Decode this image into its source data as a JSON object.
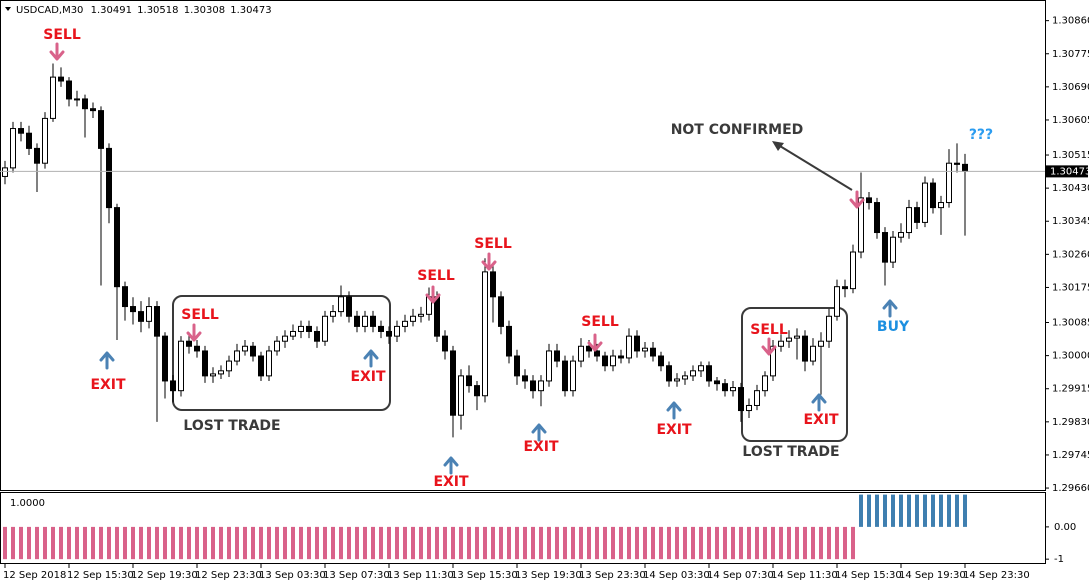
{
  "chart_data": {
    "type": "candlestick",
    "symbol": "USDCAD,M30",
    "ylim": [
      1.29655,
      1.30913
    ],
    "yticks": [
      {
        "value": 1.3086,
        "label": "1.30860"
      },
      1.30775,
      {
        "value": 1.3069,
        "label": "1.30690"
      },
      1.30605,
      1.30515,
      {
        "value": 1.3043,
        "label": "1.30430"
      },
      1.30345,
      {
        "value": 1.3026,
        "label": "1.30260"
      },
      1.30175,
      1.30085,
      {
        "value": 1.3,
        "label": "1.30000"
      },
      1.29915,
      {
        "value": 1.2983,
        "label": "1.29830"
      },
      1.29745,
      {
        "value": 1.2966,
        "label": "1.29660"
      }
    ],
    "xticks": [
      {
        "value": 0,
        "label": "12 Sep 2018"
      },
      {
        "value": 8,
        "label": "12 Sep 15:30"
      },
      {
        "value": 16,
        "label": "12 Sep 19:30"
      },
      {
        "value": 24,
        "label": "12 Sep 23:30"
      },
      {
        "value": 32,
        "label": "13 Sep 03:30"
      },
      {
        "value": 40,
        "label": "13 Sep 07:30"
      },
      {
        "value": 48,
        "label": "13 Sep 11:30"
      },
      {
        "value": 56,
        "label": "13 Sep 15:30"
      },
      {
        "value": 64,
        "label": "13 Sep 19:30"
      },
      {
        "value": 72,
        "label": "13 Sep 23:30"
      },
      {
        "value": 80,
        "label": "14 Sep 03:30"
      },
      {
        "value": 88,
        "label": "14 Sep 07:30"
      },
      {
        "value": 96,
        "label": "14 Sep 11:30"
      },
      {
        "value": 104,
        "label": "14 Sep 15:30"
      },
      {
        "value": 112,
        "label": "14 Sep 19:30"
      },
      {
        "value": 120,
        "label": "14 Sep 23:30"
      }
    ],
    "up_color": "#ffffff",
    "down_color": "#000000",
    "open": [
      1.3046,
      1.30482,
      1.30583,
      1.30571,
      1.30532,
      1.30494,
      1.30609,
      1.30715,
      1.30705,
      1.30659,
      1.30659,
      1.30634,
      1.30629,
      1.30532,
      1.3038,
      1.30177,
      1.30126,
      1.30113,
      1.30088,
      1.30126,
      1.3005,
      1.29935,
      1.2991,
      1.30037,
      1.30024,
      1.30012,
      1.29948,
      1.29953,
      1.29961,
      1.29986,
      1.30012,
      1.30024,
      1.29999,
      1.29948,
      1.30012,
      1.30037,
      1.3005,
      1.30062,
      1.30075,
      1.30062,
      1.30037,
      1.30101,
      1.30113,
      1.30151,
      1.30101,
      1.30075,
      1.30101,
      1.30075,
      1.30062,
      1.3005,
      1.30075,
      1.30088,
      1.30101,
      1.30106,
      1.30151,
      1.3005,
      1.30012,
      1.29847,
      1.29948,
      1.29923,
      1.29897,
      1.30215,
      1.30151,
      1.30075,
      1.29999,
      1.29948,
      1.29935,
      1.2991,
      1.29935,
      1.30012,
      1.29986,
      1.2991,
      1.29986,
      1.30024,
      1.30012,
      1.29999,
      1.29974,
      1.29999,
      1.29994,
      1.3005,
      1.30012,
      1.30019,
      1.29999,
      1.29974,
      1.29935,
      1.2994,
      1.29948,
      1.29961,
      1.29974,
      1.29935,
      1.29928,
      1.2991,
      1.29918,
      1.29859,
      1.29872,
      1.2991,
      1.29948,
      1.30024,
      1.30037,
      1.30045,
      1.3005,
      1.29986,
      1.30024,
      1.30037,
      1.30101,
      1.30177,
      1.30172,
      1.30266,
      1.30405,
      1.30393,
      1.30316,
      1.3024,
      1.30304,
      1.30316,
      1.3038,
      1.30342,
      1.30443,
      1.3038,
      1.30393,
      1.30494,
      1.30491
    ],
    "high": [
      1.305,
      1.306,
      1.306,
      1.3059,
      1.30545,
      1.30625,
      1.3075,
      1.3074,
      1.30715,
      1.3068,
      1.3067,
      1.3065,
      1.3064,
      1.30545,
      1.3039,
      1.3019,
      1.3015,
      1.3014,
      1.3015,
      1.3014,
      1.3006,
      1.2995,
      1.3005,
      1.3006,
      1.3004,
      1.30025,
      1.2997,
      1.29975,
      1.3,
      1.3003,
      1.3004,
      1.30035,
      1.3001,
      1.30025,
      1.3005,
      1.30065,
      1.3008,
      1.3009,
      1.3009,
      1.30075,
      1.30115,
      1.3013,
      1.3018,
      1.30165,
      1.30115,
      1.30115,
      1.30115,
      1.3009,
      1.30075,
      1.3009,
      1.30105,
      1.3012,
      1.30125,
      1.30175,
      1.30165,
      1.30065,
      1.30025,
      1.29965,
      1.29975,
      1.29935,
      1.3025,
      1.30235,
      1.30165,
      1.3009,
      1.30015,
      1.29965,
      1.2995,
      1.2995,
      1.3003,
      1.3003,
      1.3,
      1.3,
      1.30045,
      1.3004,
      1.3003,
      1.3001,
      1.30015,
      1.30015,
      1.3007,
      1.30065,
      1.30035,
      1.30035,
      1.3001,
      1.29985,
      1.29955,
      1.2996,
      1.29975,
      1.29985,
      1.29985,
      1.29945,
      1.2994,
      1.29935,
      1.2993,
      1.2989,
      1.29925,
      1.2996,
      1.3004,
      1.30055,
      1.30065,
      1.3007,
      1.30065,
      1.30045,
      1.3006,
      1.3012,
      1.30195,
      1.30195,
      1.30285,
      1.3047,
      1.3042,
      1.30405,
      1.3033,
      1.3032,
      1.3034,
      1.304,
      1.30395,
      1.3046,
      1.30455,
      1.3041,
      1.3053,
      1.30545,
      1.30518
    ],
    "low": [
      1.3044,
      1.3047,
      1.3055,
      1.30515,
      1.3042,
      1.3048,
      1.306,
      1.3069,
      1.3064,
      1.3064,
      1.3056,
      1.3061,
      1.3018,
      1.3034,
      1.3004,
      1.3009,
      1.3008,
      1.3006,
      1.3007,
      1.2983,
      1.2989,
      1.2988,
      1.29895,
      1.30005,
      1.29995,
      1.2993,
      1.2993,
      1.2994,
      1.29945,
      1.29975,
      1.3,
      1.29985,
      1.29935,
      1.29935,
      1.3,
      1.3002,
      1.3004,
      1.30045,
      1.30045,
      1.3002,
      1.30025,
      1.30085,
      1.301,
      1.30085,
      1.3006,
      1.3006,
      1.3006,
      1.30045,
      1.3003,
      1.30035,
      1.3006,
      1.30075,
      1.30085,
      1.3009,
      1.30035,
      1.2999,
      1.2979,
      1.2981,
      1.29905,
      1.2986,
      1.2988,
      1.30085,
      1.30055,
      1.2998,
      1.29925,
      1.29915,
      1.2989,
      1.2987,
      1.2992,
      1.2997,
      1.29895,
      1.29895,
      1.2997,
      1.29995,
      1.29985,
      1.2996,
      1.2996,
      1.2998,
      1.2998,
      1.29995,
      1.29995,
      1.29985,
      1.2996,
      1.2992,
      1.2992,
      1.29925,
      1.29935,
      1.29945,
      1.2992,
      1.2991,
      1.29895,
      1.29895,
      1.2983,
      1.2984,
      1.2986,
      1.29895,
      1.29935,
      1.3001,
      1.3002,
      1.2999,
      1.2996,
      1.29975,
      1.299,
      1.3002,
      1.3009,
      1.3015,
      1.3016,
      1.3025,
      1.30375,
      1.303,
      1.3018,
      1.30225,
      1.3029,
      1.303,
      1.30325,
      1.3033,
      1.30365,
      1.3031,
      1.3038,
      1.3047,
      1.30308
    ],
    "close": [
      1.30482,
      1.30583,
      1.30571,
      1.30532,
      1.30494,
      1.30609,
      1.30715,
      1.30705,
      1.30659,
      1.30659,
      1.30634,
      1.30629,
      1.30532,
      1.3038,
      1.30177,
      1.30126,
      1.30113,
      1.30088,
      1.30126,
      1.3005,
      1.29935,
      1.2991,
      1.30037,
      1.30024,
      1.30012,
      1.29948,
      1.29953,
      1.29961,
      1.29986,
      1.30012,
      1.30024,
      1.29999,
      1.29948,
      1.30012,
      1.30037,
      1.3005,
      1.30062,
      1.30075,
      1.30062,
      1.30037,
      1.30101,
      1.30113,
      1.30151,
      1.30101,
      1.30075,
      1.30101,
      1.30075,
      1.30062,
      1.3005,
      1.30075,
      1.30088,
      1.30101,
      1.30106,
      1.30151,
      1.3005,
      1.30012,
      1.29847,
      1.29948,
      1.29923,
      1.29897,
      1.30215,
      1.30151,
      1.30075,
      1.29999,
      1.29948,
      1.29935,
      1.2991,
      1.29935,
      1.30012,
      1.29986,
      1.2991,
      1.29986,
      1.30024,
      1.30012,
      1.29999,
      1.29974,
      1.29999,
      1.29994,
      1.3005,
      1.30012,
      1.30019,
      1.29999,
      1.29974,
      1.29935,
      1.2994,
      1.29948,
      1.29961,
      1.29974,
      1.29935,
      1.29928,
      1.2991,
      1.29918,
      1.29859,
      1.29872,
      1.2991,
      1.29948,
      1.30024,
      1.30037,
      1.30045,
      1.3005,
      1.29986,
      1.30024,
      1.30037,
      1.30101,
      1.30177,
      1.30172,
      1.30266,
      1.30405,
      1.30393,
      1.30316,
      1.3024,
      1.30304,
      1.30316,
      1.3038,
      1.30342,
      1.30443,
      1.3038,
      1.30393,
      1.30494,
      1.30491,
      1.30473
    ],
    "annotations": [
      {
        "text": "SELL",
        "color": "#e8141c"
      },
      {
        "text": "EXIT",
        "color": "#e8141c"
      },
      {
        "text": "SELL",
        "color": "#e8141c"
      },
      {
        "text": "LOST TRADE",
        "color": "#3a3a3a"
      },
      {
        "text": "EXIT",
        "color": "#e8141c"
      },
      {
        "text": "SELL",
        "color": "#e8141c"
      },
      {
        "text": "SELL",
        "color": "#e8141c"
      },
      {
        "text": "EXIT",
        "color": "#e8141c"
      },
      {
        "text": "EXIT",
        "color": "#e8141c"
      },
      {
        "text": "SELL",
        "color": "#e8141c"
      },
      {
        "text": "EXIT",
        "color": "#e8141c"
      },
      {
        "text": "SELL",
        "color": "#e8141c"
      },
      {
        "text": "EXIT",
        "color": "#e8141c"
      },
      {
        "text": "LOST TRADE",
        "color": "#3a3a3a"
      },
      {
        "text": "BUY",
        "color": "#1c8fe0"
      },
      {
        "text": "NOT CONFIRMED",
        "color": "#3a3a3a"
      },
      {
        "text": "???",
        "color": "#2b9cf0"
      }
    ],
    "arrow_colors": {
      "down": "#d9628a",
      "up": "#4b82b4"
    },
    "indicator": {
      "label": "1.0000",
      "ylim": [
        -1.15,
        1.05
      ],
      "yticks": [
        {
          "value": 0,
          "label": "0.00"
        },
        -1
      ],
      "colors": {
        "negative": "#d9628a",
        "positive": "#3f7fb0"
      },
      "values": [
        -1,
        -1,
        -1,
        -1,
        -1,
        -1,
        -1,
        -1,
        -1,
        -1,
        -1,
        -1,
        -1,
        -1,
        -1,
        -1,
        -1,
        -1,
        -1,
        -1,
        -1,
        -1,
        -1,
        -1,
        -1,
        -1,
        -1,
        -1,
        -1,
        -1,
        -1,
        -1,
        -1,
        -1,
        -1,
        -1,
        -1,
        -1,
        -1,
        -1,
        -1,
        -1,
        -1,
        -1,
        -1,
        -1,
        -1,
        -1,
        -1,
        -1,
        -1,
        -1,
        -1,
        -1,
        -1,
        -1,
        -1,
        -1,
        -1,
        -1,
        -1,
        -1,
        -1,
        -1,
        -1,
        -1,
        -1,
        -1,
        -1,
        -1,
        -1,
        -1,
        -1,
        -1,
        -1,
        -1,
        -1,
        -1,
        -1,
        -1,
        -1,
        -1,
        -1,
        -1,
        -1,
        -1,
        -1,
        -1,
        -1,
        -1,
        -1,
        -1,
        -1,
        -1,
        -1,
        -1,
        -1,
        -1,
        -1,
        -1,
        -1,
        -1,
        -1,
        -1,
        -1,
        -1,
        -1,
        1,
        1,
        1,
        1,
        1,
        1,
        1,
        1,
        1,
        1,
        1,
        1,
        1,
        1
      ]
    }
  }
}
